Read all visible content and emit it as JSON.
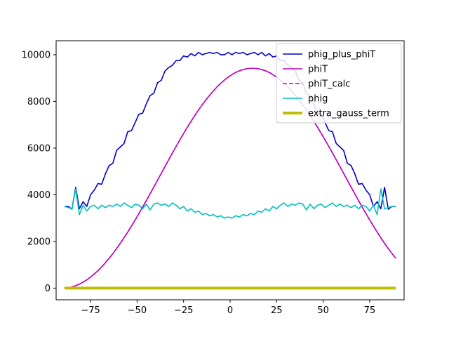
{
  "chart_data": {
    "type": "line",
    "title": "",
    "xlabel": "",
    "ylabel": "",
    "xlim": [
      -93.5,
      93.5
    ],
    "ylim": [
      -500,
      10600
    ],
    "xticks": [
      -75,
      -50,
      -25,
      0,
      25,
      50,
      75
    ],
    "yticks": [
      0,
      2000,
      4000,
      6000,
      8000,
      10000
    ],
    "xtick_labels": [
      "−75",
      "−50",
      "−25",
      "0",
      "25",
      "50",
      "75"
    ],
    "ytick_labels": [
      "0",
      "2000",
      "4000",
      "6000",
      "8000",
      "10000"
    ],
    "grid": false,
    "legend": "top-right",
    "x": [
      -89,
      -87,
      -85,
      -83,
      -81,
      -79,
      -77,
      -75,
      -73,
      -71,
      -69,
      -67,
      -65,
      -63,
      -61,
      -59,
      -57,
      -55,
      -53,
      -51,
      -49,
      -47,
      -45,
      -43,
      -41,
      -39,
      -37,
      -35,
      -33,
      -31,
      -29,
      -27,
      -25,
      -23,
      -21,
      -19,
      -17,
      -15,
      -13,
      -11,
      -9,
      -7,
      -5,
      -3,
      -1,
      1,
      3,
      5,
      7,
      9,
      11,
      13,
      15,
      17,
      19,
      21,
      23,
      25,
      27,
      29,
      31,
      33,
      35,
      37,
      39,
      41,
      43,
      45,
      47,
      49,
      51,
      53,
      55,
      57,
      59,
      61,
      63,
      65,
      67,
      69,
      71,
      73,
      75,
      77,
      79,
      81,
      83,
      85,
      87,
      89
    ],
    "series": [
      {
        "name": "phig_plus_phiT",
        "color": "#0000cc",
        "style": "solid",
        "width": 1.6,
        "values": [
          3500,
          3500,
          3380,
          4320,
          3400,
          3700,
          3500,
          4000,
          4200,
          4480,
          4450,
          4900,
          5250,
          5350,
          5900,
          6050,
          6200,
          6700,
          6750,
          7100,
          7450,
          7500,
          7900,
          8250,
          8350,
          8800,
          8900,
          9300,
          9450,
          9550,
          9750,
          9750,
          9950,
          9900,
          10050,
          9950,
          10100,
          10000,
          10050,
          10100,
          10050,
          10100,
          10000,
          10000,
          10100,
          10000,
          10100,
          10050,
          10100,
          10000,
          10050,
          10100,
          10000,
          10100,
          9950,
          10050,
          9900,
          9950,
          9750,
          9750,
          9550,
          9450,
          9300,
          8900,
          8800,
          8350,
          8250,
          7900,
          7500,
          7450,
          7100,
          6750,
          6700,
          6200,
          6050,
          5900,
          5350,
          5250,
          4900,
          4450,
          4480,
          4200,
          4000,
          3500,
          3700,
          3400,
          4320,
          3380,
          3500,
          3500
        ]
      },
      {
        "name": "phiT",
        "color": "#bf00bf",
        "style": "solid",
        "width": 1.6,
        "values": [
          2.1,
          19.2,
          53.2,
          104,
          172,
          256,
          356,
          473,
          605,
          752,
          913,
          1089,
          1278,
          1480,
          1695,
          1921,
          2157,
          2404,
          2660,
          2924,
          3195,
          3472,
          3755,
          4042,
          4332,
          4624,
          4918,
          5210,
          5501,
          5790,
          6073,
          6352,
          6625,
          6890,
          7146,
          7393,
          7629,
          7854,
          8067,
          8266,
          8451,
          8622,
          8777,
          8918,
          9042,
          9149,
          9239,
          9311,
          9365,
          9401,
          9419,
          9419,
          9401,
          9365,
          9311,
          9239,
          9149,
          9042,
          8918,
          8777,
          8622,
          8451,
          8266,
          8067,
          7854,
          7629,
          7393,
          7146,
          6890,
          6625,
          6352,
          6073,
          5790,
          5501,
          5210,
          4918,
          4624,
          4332,
          4042,
          3755,
          3472,
          3195,
          2924,
          2660,
          2404,
          2157,
          1921,
          1695,
          1480,
          1278
        ]
      },
      {
        "name": "phiT_calc",
        "color": "#bf00bf",
        "style": "dashed",
        "width": 1.6,
        "values": [
          2.1,
          19.2,
          53.2,
          104,
          172,
          256,
          356,
          473,
          605,
          752,
          913,
          1089,
          1278,
          1480,
          1695,
          1921,
          2157,
          2404,
          2660,
          2924,
          3195,
          3472,
          3755,
          4042,
          4332,
          4624,
          4918,
          5210,
          5501,
          5790,
          6073,
          6352,
          6625,
          6890,
          7146,
          7393,
          7629,
          7854,
          8067,
          8266,
          8451,
          8622,
          8777,
          8918,
          9042,
          9149,
          9239,
          9311,
          9365,
          9401,
          9419,
          9419,
          9401,
          9365,
          9311,
          9239,
          9149,
          9042,
          8918,
          8777,
          8622,
          8451,
          8266,
          8067,
          7854,
          7629,
          7393,
          7146,
          6890,
          6625,
          6352,
          6073,
          5790,
          5501,
          5210,
          4918,
          4624,
          4332,
          4042,
          3755,
          3472,
          3195,
          2924,
          2660,
          2404,
          2157,
          1921,
          1695,
          1480,
          1278
        ]
      },
      {
        "name": "phig",
        "color": "#00bfbf",
        "style": "solid",
        "width": 1.6,
        "values": [
          3500,
          3450,
          3400,
          4250,
          3150,
          3550,
          3300,
          3500,
          3550,
          3400,
          3550,
          3450,
          3550,
          3500,
          3600,
          3500,
          3650,
          3550,
          3450,
          3600,
          3550,
          3400,
          3600,
          3350,
          3600,
          3650,
          3550,
          3600,
          3500,
          3650,
          3550,
          3400,
          3500,
          3300,
          3400,
          3250,
          3300,
          3150,
          3200,
          3100,
          3150,
          3050,
          3100,
          3000,
          3050,
          3000,
          3100,
          3050,
          3150,
          3100,
          3200,
          3150,
          3300,
          3250,
          3400,
          3300,
          3500,
          3400,
          3550,
          3650,
          3500,
          3600,
          3550,
          3650,
          3600,
          3350,
          3600,
          3400,
          3550,
          3600,
          3450,
          3550,
          3650,
          3500,
          3600,
          3500,
          3550,
          3450,
          3550,
          3400,
          3550,
          3500,
          3300,
          3550,
          3150,
          4250,
          3400,
          3450,
          3500,
          3500
        ]
      },
      {
        "name": "extra_gauss_term",
        "color": "#bfbf00",
        "style": "solid",
        "width": 4,
        "values": [
          0,
          0,
          0,
          0,
          0,
          0,
          0,
          0,
          0,
          0,
          0,
          0,
          0,
          0,
          0,
          0,
          0,
          0,
          0,
          0,
          0,
          0,
          0,
          0,
          0,
          0,
          0,
          0,
          0,
          0,
          0,
          0,
          0,
          0,
          0,
          0,
          0,
          0,
          0,
          0,
          0,
          0,
          0,
          0,
          0,
          0,
          0,
          0,
          0,
          0,
          0,
          0,
          0,
          0,
          0,
          0,
          0,
          0,
          0,
          0,
          0,
          0,
          0,
          0,
          0,
          0,
          0,
          0,
          0,
          0,
          0,
          0,
          0,
          0,
          0,
          0,
          0,
          0,
          0,
          0,
          0,
          0,
          0,
          0,
          0,
          0,
          0,
          0,
          0,
          0
        ]
      }
    ]
  }
}
